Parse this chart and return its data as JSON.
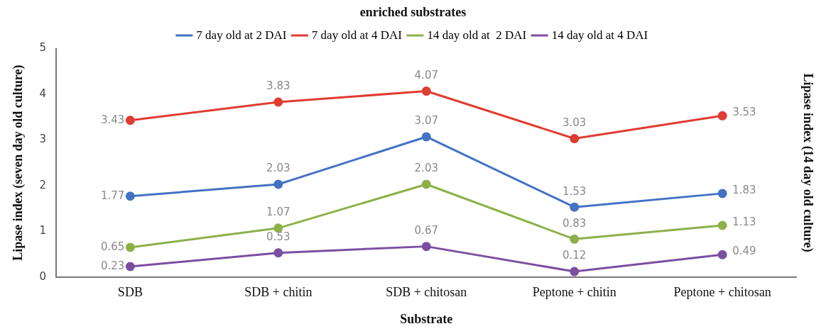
{
  "chart_data": {
    "type": "line",
    "title": "enriched substrates",
    "xlabel": "Substrate",
    "ylabel": "Lipase index (seven day old culture)",
    "y2label": "Lipase index (14 day old culture)",
    "categories": [
      "SDB",
      "SDB + chitin",
      "SDB + chitosan",
      "Peptone + chitin",
      "Peptone + chitosan"
    ],
    "series": [
      {
        "name": "7 day old at 2 DAI",
        "color": "#4472c4",
        "values": [
          1.77,
          2.03,
          3.07,
          1.53,
          1.83
        ]
      },
      {
        "name": "7 day old at 4 DAI",
        "color": "#e03c31",
        "values": [
          3.43,
          3.83,
          4.07,
          3.03,
          3.53
        ]
      },
      {
        "name": "14 day old at  2 DAI",
        "color": "#8db04a",
        "values": [
          0.65,
          1.07,
          2.03,
          0.83,
          1.13
        ]
      },
      {
        "name": "14 day old at 4 DAI",
        "color": "#7b4fa0",
        "values": [
          0.23,
          0.53,
          0.67,
          0.12,
          0.49
        ]
      }
    ],
    "ylim": [
      0,
      5
    ],
    "yticks": [
      0,
      1,
      2,
      3,
      4,
      5
    ],
    "grid": false,
    "legend": "top",
    "marker": "circle",
    "line_style": "solid",
    "data_labels": true
  }
}
